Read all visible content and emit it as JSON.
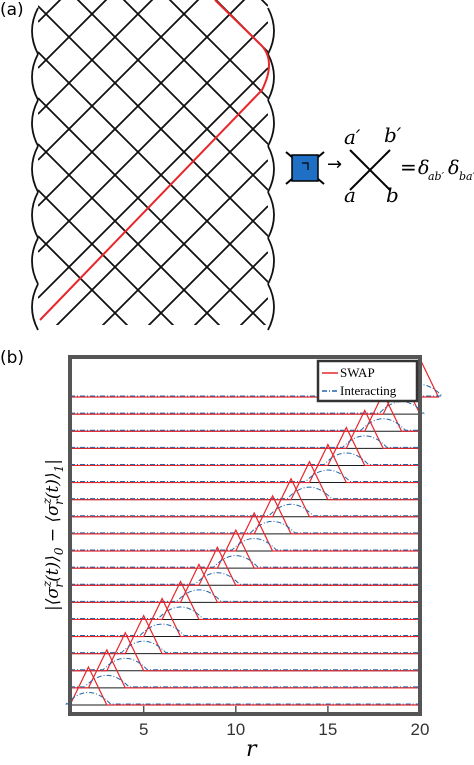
{
  "panels": {
    "a_label": "(a)",
    "b_label": "(b)"
  },
  "gate": {
    "arrow": "→",
    "a_prime": "a′",
    "b_prime": "b′",
    "a": "a",
    "b": "b",
    "equals": "=",
    "delta1": "δ",
    "delta1_sub": "ab′",
    "delta2": "δ",
    "delta2_sub": "ba′",
    "gate_fill": "#1f6fc4"
  },
  "chart_data": {
    "type": "line",
    "xlabel": "r",
    "ylabel": "|⟨σ_r^z(t)⟩_0 − ⟨σ_r^z(t)⟩_1|",
    "x_ticks": [
      5,
      10,
      15,
      20
    ],
    "xlim": [
      1,
      20
    ],
    "legend": [
      "SWAP",
      "Interacting"
    ],
    "legend_position": "top-right",
    "colors": {
      "swap": "#e8262b",
      "interacting": "#2166ac",
      "baseline": "#1a1a1a"
    },
    "num_time_slices": 19,
    "description": "Vertically offset traces, one per time step t=1..19; SWAP peaks at r=t+1 (triangular bump), Interacting curves show smaller dash-dot bumps near the light cone."
  }
}
